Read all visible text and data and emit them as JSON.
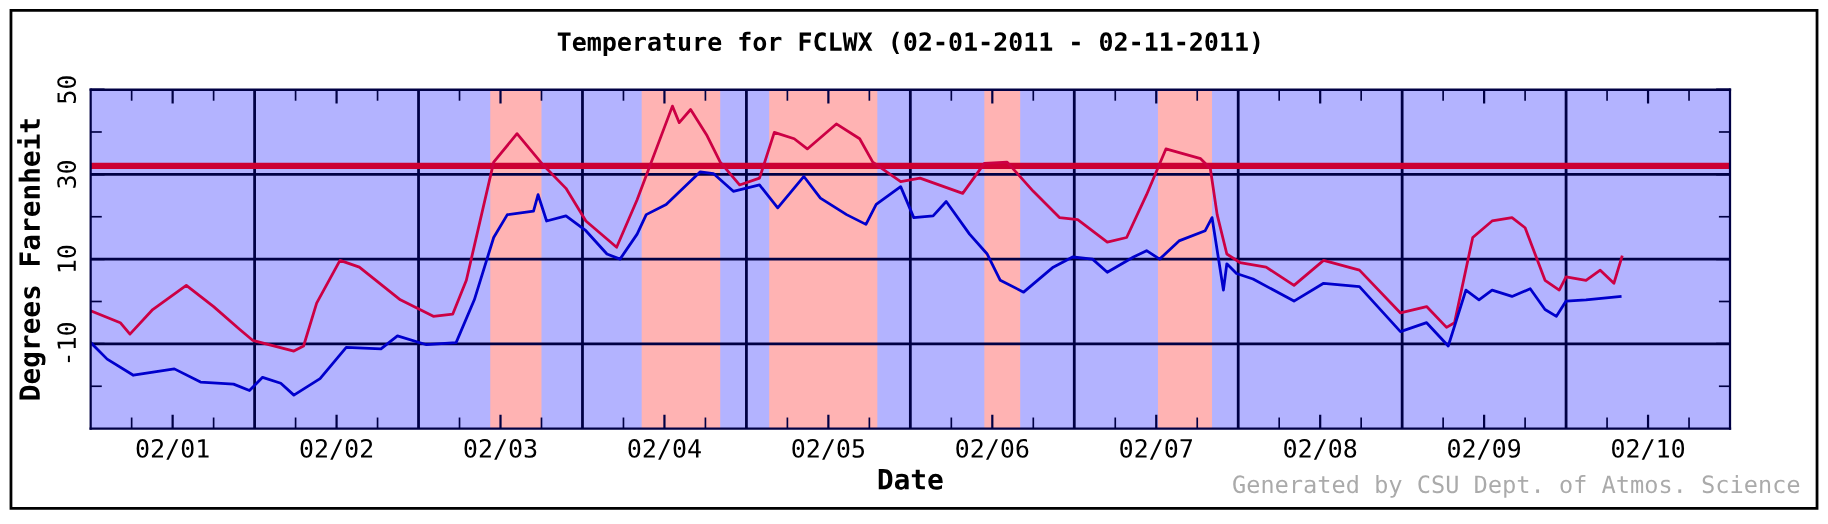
{
  "chart_data": {
    "type": "line",
    "title": "Temperature for FCLWX (02-01-2011 - 02-11-2011)",
    "xlabel": "Date",
    "ylabel": "Degrees Farenheit",
    "annotations": [
      "Generated by CSU Dept. of Atmos. Science"
    ],
    "xlim": [
      "2011-02-01T00:00",
      "2011-02-11T00:00"
    ],
    "xticks": [
      {
        "value": "2011-02-01T06:00",
        "label": null
      },
      {
        "value": "2011-02-01T12:00",
        "label": "02/01"
      },
      {
        "value": "2011-02-01T18:00",
        "label": null
      },
      {
        "value": "2011-02-02T06:00",
        "label": null
      },
      {
        "value": "2011-02-02T12:00",
        "label": "02/02"
      },
      {
        "value": "2011-02-02T18:00",
        "label": null
      },
      {
        "value": "2011-02-03T06:00",
        "label": null
      },
      {
        "value": "2011-02-03T12:00",
        "label": "02/03"
      },
      {
        "value": "2011-02-03T18:00",
        "label": null
      },
      {
        "value": "2011-02-04T06:00",
        "label": null
      },
      {
        "value": "2011-02-04T12:00",
        "label": "02/04"
      },
      {
        "value": "2011-02-04T18:00",
        "label": null
      },
      {
        "value": "2011-02-05T06:00",
        "label": null
      },
      {
        "value": "2011-02-05T12:00",
        "label": "02/05"
      },
      {
        "value": "2011-02-05T18:00",
        "label": null
      },
      {
        "value": "2011-02-06T06:00",
        "label": null
      },
      {
        "value": "2011-02-06T12:00",
        "label": "02/06"
      },
      {
        "value": "2011-02-06T18:00",
        "label": null
      },
      {
        "value": "2011-02-07T06:00",
        "label": null
      },
      {
        "value": "2011-02-07T12:00",
        "label": "02/07"
      },
      {
        "value": "2011-02-07T18:00",
        "label": null
      },
      {
        "value": "2011-02-08T06:00",
        "label": null
      },
      {
        "value": "2011-02-08T12:00",
        "label": "02/08"
      },
      {
        "value": "2011-02-08T18:00",
        "label": null
      },
      {
        "value": "2011-02-09T06:00",
        "label": null
      },
      {
        "value": "2011-02-09T12:00",
        "label": "02/09"
      },
      {
        "value": "2011-02-09T18:00",
        "label": null
      },
      {
        "value": "2011-02-10T06:00",
        "label": null
      },
      {
        "value": "2011-02-10T12:00",
        "label": "02/10"
      },
      {
        "value": "2011-02-10T18:00",
        "label": null
      }
    ],
    "ylim": [
      -30,
      50
    ],
    "yticks": [
      50,
      {
        "value": 40,
        "label": null
      },
      30,
      {
        "value": 20,
        "label": null
      },
      10,
      {
        "value": 0,
        "label": null
      },
      -10,
      {
        "value": -20,
        "label": null
      }
    ],
    "grid": "y",
    "legend": false,
    "marker": "none",
    "line_style": "solid",
    "ref_lines": [
      {
        "axis": "y",
        "value": 32,
        "color": "#cc0033"
      },
      {
        "axis": "x",
        "value": "2011-02-02T00:00",
        "color": "#000044"
      },
      {
        "axis": "x",
        "value": "2011-02-03T00:00",
        "color": "#000044"
      },
      {
        "axis": "x",
        "value": "2011-02-04T00:00",
        "color": "#000044"
      },
      {
        "axis": "x",
        "value": "2011-02-05T00:00",
        "color": "#000044"
      },
      {
        "axis": "x",
        "value": "2011-02-06T00:00",
        "color": "#000044"
      },
      {
        "axis": "x",
        "value": "2011-02-07T00:00",
        "color": "#000044"
      },
      {
        "axis": "x",
        "value": "2011-02-08T00:00",
        "color": "#000044"
      },
      {
        "axis": "x",
        "value": "2011-02-09T00:00",
        "color": "#000044"
      },
      {
        "axis": "x",
        "value": "2011-02-10T00:00",
        "color": "#000044"
      }
    ],
    "bands": [
      {
        "axis": "x",
        "from": "2011-02-03T10:30",
        "to": "2011-02-03T18:00",
        "color": "#ffb3b3"
      },
      {
        "axis": "x",
        "from": "2011-02-04T08:40",
        "to": "2011-02-04T20:10",
        "color": "#ffb3b3"
      },
      {
        "axis": "x",
        "from": "2011-02-05T03:20",
        "to": "2011-02-05T19:10",
        "color": "#ffb3b3"
      },
      {
        "axis": "x",
        "from": "2011-02-06T10:50",
        "to": "2011-02-06T16:05",
        "color": "#ffb3b3"
      },
      {
        "axis": "x",
        "from": "2011-02-07T12:15",
        "to": "2011-02-07T20:10",
        "color": "#ffb3b3"
      }
    ],
    "series": [
      {
        "color": "#cc0044",
        "x": [
          "2011-02-01T00:00",
          "2011-02-01T04:20",
          "2011-02-01T05:45",
          "2011-02-01T09:05",
          "2011-02-01T14:00",
          "2011-02-01T18:00",
          "2011-02-01T21:50",
          "2011-02-01T23:45",
          "2011-02-02T05:45",
          "2011-02-02T07:10",
          "2011-02-02T09:05",
          "2011-02-02T12:30",
          "2011-02-02T15:20",
          "2011-02-02T21:20",
          "2011-02-03T02:10",
          "2011-02-03T05:00",
          "2011-02-03T07:00",
          "2011-02-03T11:00",
          "2011-02-03T14:25",
          "2011-02-03T18:15",
          "2011-02-03T21:35",
          "2011-02-04T00:30",
          "2011-02-04T05:00",
          "2011-02-04T08:00",
          "2011-02-04T13:10",
          "2011-02-04T14:10",
          "2011-02-04T15:50",
          "2011-02-04T18:15",
          "2011-02-04T20:10",
          "2011-02-04T23:00",
          "2011-02-05T01:55",
          "2011-02-05T04:05",
          "2011-02-05T07:00",
          "2011-02-05T08:55",
          "2011-02-05T13:10",
          "2011-02-05T16:35",
          "2011-02-05T18:30",
          "2011-02-05T22:35",
          "2011-02-06T01:25",
          "2011-02-06T07:40",
          "2011-02-06T10:50",
          "2011-02-06T14:10",
          "2011-02-06T18:00",
          "2011-02-06T21:50",
          "2011-02-07T00:30",
          "2011-02-07T04:50",
          "2011-02-07T07:40",
          "2011-02-07T10:35",
          "2011-02-07T13:25",
          "2011-02-07T18:30",
          "2011-02-07T19:55",
          "2011-02-07T20:55",
          "2011-02-07T22:20",
          "2011-02-08T00:15",
          "2011-02-08T04:05",
          "2011-02-08T08:10",
          "2011-02-08T12:30",
          "2011-02-08T17:45",
          "2011-02-08T23:45",
          "2011-02-09T03:35",
          "2011-02-09T06:30",
          "2011-02-09T07:40",
          "2011-02-09T10:20",
          "2011-02-09T13:10",
          "2011-02-09T16:05",
          "2011-02-09T18:00",
          "2011-02-09T20:55",
          "2011-02-09T23:00",
          "2011-02-10T00:00",
          "2011-02-10T02:55",
          "2011-02-10T05:00",
          "2011-02-10T07:00",
          "2011-02-10T08:10"
        ],
        "values": [
          -2.2,
          -5.0,
          -7.7,
          -1.9,
          3.8,
          -1.2,
          -6.6,
          -9.2,
          -11.7,
          -10.5,
          -0.4,
          9.7,
          8.1,
          0.4,
          -3.5,
          -3.0,
          5.0,
          32.9,
          39.6,
          32.2,
          26.7,
          19.0,
          12.8,
          24,
          46.1,
          42.2,
          45.3,
          39.1,
          32.9,
          27.5,
          29.1,
          39.9,
          38.4,
          36,
          41.9,
          38.4,
          32.9,
          28.3,
          29.1,
          25.5,
          32.6,
          32.9,
          26,
          19.8,
          19.3,
          14.0,
          15.1,
          25.2,
          36.0,
          33.7,
          31.4,
          20.5,
          11.2,
          9.2,
          8.1,
          3.8,
          9.7,
          7.4,
          -2.7,
          -1.2,
          -6.1,
          -5.0,
          15.1,
          19.0,
          19.8,
          17.4,
          5.0,
          2.7,
          5.8,
          5.0,
          7.4,
          4.3,
          10.5
        ]
      },
      {
        "color": "#0000cc",
        "x": [
          "2011-02-01T00:00",
          "2011-02-01T02:25",
          "2011-02-01T06:15",
          "2011-02-01T12:15",
          "2011-02-01T16:05",
          "2011-02-01T20:55",
          "2011-02-01T23:15",
          "2011-02-02T01:10",
          "2011-02-02T03:50",
          "2011-02-02T05:45",
          "2011-02-02T09:35",
          "2011-02-02T13:25",
          "2011-02-02T18:30",
          "2011-02-02T20:55",
          "2011-02-03T01:10",
          "2011-02-03T05:30",
          "2011-02-03T08:10",
          "2011-02-03T11:00",
          "2011-02-03T13:00",
          "2011-02-03T16:50",
          "2011-02-03T17:30",
          "2011-02-03T18:45",
          "2011-02-03T21:35",
          "2011-02-04T00:30",
          "2011-02-04T03:35",
          "2011-02-04T05:30",
          "2011-02-04T08:00",
          "2011-02-04T09:20",
          "2011-02-04T12:15",
          "2011-02-04T17:15",
          "2011-02-04T19:10",
          "2011-02-04T22:05",
          "2011-02-05T01:55",
          "2011-02-05T04:35",
          "2011-02-05T08:25",
          "2011-02-05T10:50",
          "2011-02-05T14:40",
          "2011-02-05T17:30",
          "2011-02-05T19:00",
          "2011-02-05T22:35",
          "2011-02-06T00:30",
          "2011-02-06T03:20",
          "2011-02-06T05:15",
          "2011-02-06T08:40",
          "2011-02-06T11:15",
          "2011-02-06T13:10",
          "2011-02-06T16:35",
          "2011-02-06T20:55",
          "2011-02-06T23:45",
          "2011-02-07T02:40",
          "2011-02-07T04:50",
          "2011-02-07T08:40",
          "2011-02-07T10:35",
          "2011-02-07T12:30",
          "2011-02-07T15:20",
          "2011-02-07T19:10",
          "2011-02-07T20:10",
          "2011-02-07T21:50",
          "2011-02-07T22:20",
          "2011-02-07T23:45",
          "2011-02-08T02:10",
          "2011-02-08T08:10",
          "2011-02-08T12:30",
          "2011-02-08T17:45",
          "2011-02-08T23:45",
          "2011-02-09T03:35",
          "2011-02-09T06:45",
          "2011-02-09T09:20",
          "2011-02-09T11:15",
          "2011-02-09T13:10",
          "2011-02-09T16:05",
          "2011-02-09T18:45",
          "2011-02-09T20:55",
          "2011-02-09T22:35",
          "2011-02-10T00:00",
          "2011-02-10T02:55",
          "2011-02-10T07:55"
        ],
        "values": [
          -9.7,
          -13.6,
          -17.4,
          -15.9,
          -19.0,
          -19.5,
          -21,
          -17.9,
          -19.3,
          -22.1,
          -18.2,
          -10.8,
          -11.2,
          -8.1,
          -10.2,
          -9.7,
          0.4,
          15.1,
          20.5,
          21.3,
          25.2,
          19.0,
          20.2,
          16.7,
          11.2,
          10,
          15.9,
          20.5,
          22.9,
          30.6,
          30.2,
          26,
          27.5,
          22.1,
          29.5,
          24.4,
          20.5,
          18.2,
          22.9,
          27.1,
          19.8,
          20.2,
          23.6,
          15.9,
          11.2,
          5.0,
          2.2,
          8.1,
          10.5,
          10,
          6.9,
          10.5,
          12.0,
          10,
          14.3,
          16.7,
          19.8,
          2.7,
          8.9,
          6.6,
          5.3,
          0.1,
          4.3,
          3.5,
          -7.1,
          -5.0,
          -10.5,
          2.7,
          0.4,
          2.7,
          1.2,
          3.0,
          -1.9,
          -3.5,
          0.1,
          0.4,
          1.2
        ]
      }
    ]
  }
}
